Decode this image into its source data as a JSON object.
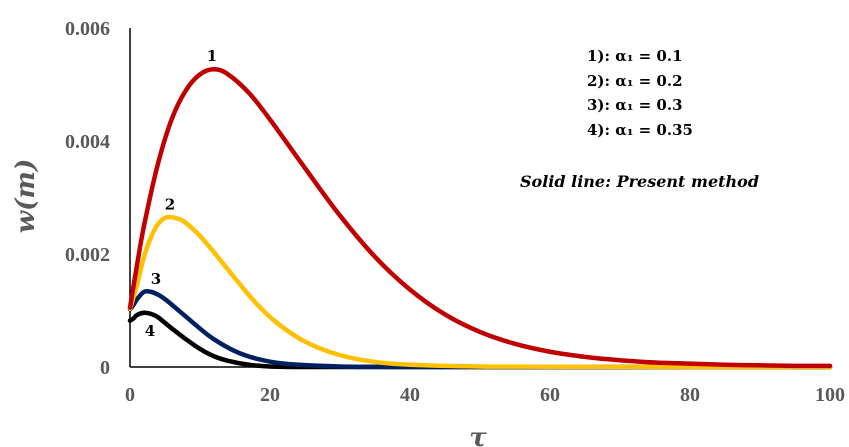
{
  "chart_data": {
    "type": "line",
    "xlabel": "τ",
    "ylabel": "w(m)",
    "xlim": [
      0,
      100
    ],
    "ylim": [
      0,
      0.006
    ],
    "x_ticks": [
      0,
      20,
      40,
      60,
      80,
      100
    ],
    "x_tick_labels": [
      "0",
      "20",
      "40",
      "60",
      "80",
      "100"
    ],
    "y_ticks": [
      0,
      0.002,
      0.004,
      0.006
    ],
    "y_tick_labels": [
      "0",
      "0.002",
      "0.004",
      "0.006"
    ],
    "grid": false,
    "legend_position": "top-right",
    "legend_entries": [
      "1): α₁ = 0.1",
      "2): α₁ = 0.2",
      "3): α₁ = 0.3",
      "4): α₁ = 0.35"
    ],
    "annotation": "Solid line: Present method",
    "series": [
      {
        "label": "1",
        "color": "#c00000",
        "x": [
          0,
          1,
          2,
          4,
          6,
          8,
          10,
          12,
          14,
          17,
          20,
          25,
          30,
          35,
          40,
          45,
          50,
          55,
          60,
          65,
          70,
          75,
          80,
          85,
          90,
          95,
          100
        ],
        "y": [
          0.00105,
          0.0018,
          0.0025,
          0.0036,
          0.0044,
          0.0049,
          0.00518,
          0.00527,
          0.00518,
          0.00485,
          0.00438,
          0.00352,
          0.00268,
          0.00195,
          0.00137,
          0.00093,
          0.00062,
          0.00041,
          0.00027,
          0.00018,
          0.00012,
          8e-05,
          6e-05,
          4e-05,
          3e-05,
          2e-05,
          2e-05
        ]
      },
      {
        "label": "2",
        "color": "#ffc000",
        "x": [
          0,
          1,
          2,
          3,
          4,
          5,
          6,
          7,
          8,
          10,
          12,
          15,
          18,
          21,
          25,
          30,
          35,
          40,
          50,
          60,
          80,
          100
        ],
        "y": [
          0.00103,
          0.00145,
          0.00195,
          0.0023,
          0.00253,
          0.00264,
          0.00265,
          0.00262,
          0.00255,
          0.00232,
          0.00203,
          0.00157,
          0.00113,
          0.00078,
          0.00045,
          0.00021,
          9e-05,
          4e-05,
          1e-05,
          5e-06,
          0,
          0
        ]
      },
      {
        "label": "3",
        "color": "#002060",
        "x": [
          0,
          0.5,
          1,
          2,
          3,
          4,
          5,
          6,
          8,
          10,
          12,
          15,
          18,
          22,
          30,
          40,
          60,
          100
        ],
        "y": [
          0.00102,
          0.0011,
          0.0012,
          0.00133,
          0.00133,
          0.00128,
          0.0012,
          0.0011,
          0.00089,
          0.00068,
          0.00049,
          0.00028,
          0.00015,
          6e-05,
          1e-05,
          0,
          0,
          0
        ]
      },
      {
        "label": "4",
        "color": "#000000",
        "x": [
          0,
          0.5,
          1,
          2,
          3,
          4,
          5,
          6,
          8,
          10,
          12,
          14,
          17,
          20,
          25,
          30,
          40,
          60,
          100
        ],
        "y": [
          0.00082,
          0.00086,
          0.00092,
          0.00096,
          0.00094,
          0.00088,
          0.00078,
          0.00068,
          0.00049,
          0.00032,
          0.00019,
          0.00011,
          4e-05,
          1e-05,
          0,
          0,
          0,
          0,
          0
        ]
      }
    ]
  }
}
